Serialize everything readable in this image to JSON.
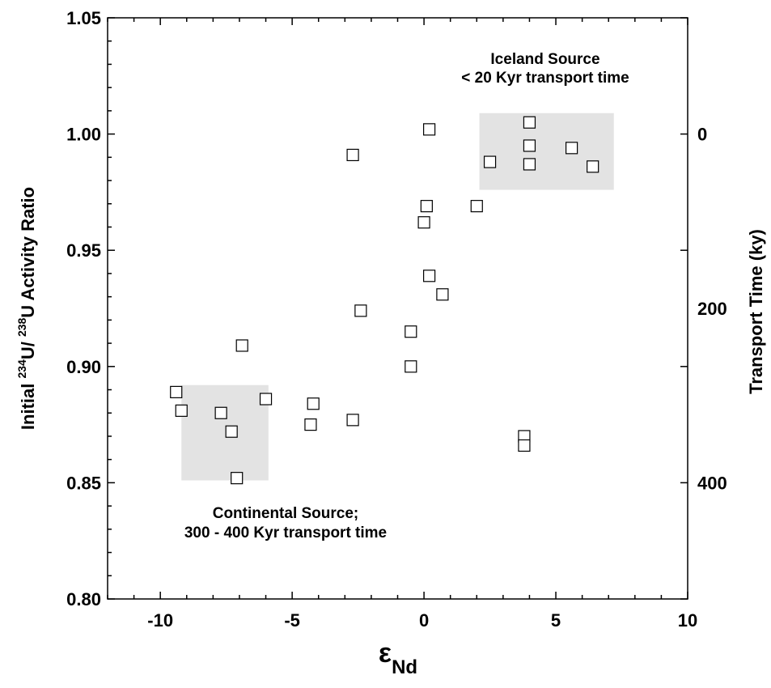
{
  "chart_data": {
    "type": "scatter",
    "xlabel": {
      "symbol": "ε",
      "subscript": "Nd"
    },
    "ylabel": {
      "prefix": "Initial ",
      "sup1": "234",
      "mid": "U/ ",
      "sup2": "238",
      "suffix": "U Activity Ratio"
    },
    "y2label": "Transport Time (ky)",
    "xlim": [
      -12,
      10
    ],
    "ylim": [
      0.8,
      1.05
    ],
    "x_ticks": [
      "-10",
      "-5",
      "0",
      "5",
      "10"
    ],
    "y_ticks": [
      "0.80",
      "0.85",
      "0.90",
      "0.95",
      "1.00",
      "1.05"
    ],
    "y2_ticks": [
      {
        "label": "0",
        "y": 1.0
      },
      {
        "label": "200",
        "y": 0.925
      },
      {
        "label": "400",
        "y": 0.85
      }
    ],
    "regions": [
      {
        "name": "Iceland Source",
        "x": [
          2.1,
          7.2
        ],
        "y": [
          0.976,
          1.009
        ]
      },
      {
        "name": "Continental Source",
        "x": [
          -9.2,
          -5.9
        ],
        "y": [
          0.851,
          0.892
        ]
      }
    ],
    "annotations": [
      {
        "lines": [
          "Iceland Source",
          "< 20 Kyr transport time"
        ]
      },
      {
        "lines": [
          "Continental Source;",
          "300 - 400 Kyr transport time"
        ]
      }
    ],
    "points": [
      {
        "x": 4.0,
        "y": 1.005
      },
      {
        "x": 4.0,
        "y": 0.995
      },
      {
        "x": 4.0,
        "y": 0.987
      },
      {
        "x": 5.6,
        "y": 0.994
      },
      {
        "x": 6.4,
        "y": 0.986
      },
      {
        "x": 2.5,
        "y": 0.988
      },
      {
        "x": 0.2,
        "y": 1.002
      },
      {
        "x": -2.7,
        "y": 0.991
      },
      {
        "x": 0.1,
        "y": 0.969
      },
      {
        "x": 2.0,
        "y": 0.969
      },
      {
        "x": 0.0,
        "y": 0.962
      },
      {
        "x": 0.2,
        "y": 0.939
      },
      {
        "x": 0.7,
        "y": 0.931
      },
      {
        "x": -2.4,
        "y": 0.924
      },
      {
        "x": -0.5,
        "y": 0.915
      },
      {
        "x": -0.5,
        "y": 0.9
      },
      {
        "x": -6.9,
        "y": 0.909
      },
      {
        "x": -9.4,
        "y": 0.889
      },
      {
        "x": -9.2,
        "y": 0.881
      },
      {
        "x": -7.7,
        "y": 0.88
      },
      {
        "x": -7.3,
        "y": 0.872
      },
      {
        "x": -6.0,
        "y": 0.886
      },
      {
        "x": -4.2,
        "y": 0.884
      },
      {
        "x": -4.3,
        "y": 0.875
      },
      {
        "x": -2.7,
        "y": 0.877
      },
      {
        "x": -7.1,
        "y": 0.852
      },
      {
        "x": 3.8,
        "y": 0.87
      },
      {
        "x": 3.8,
        "y": 0.866
      }
    ]
  }
}
